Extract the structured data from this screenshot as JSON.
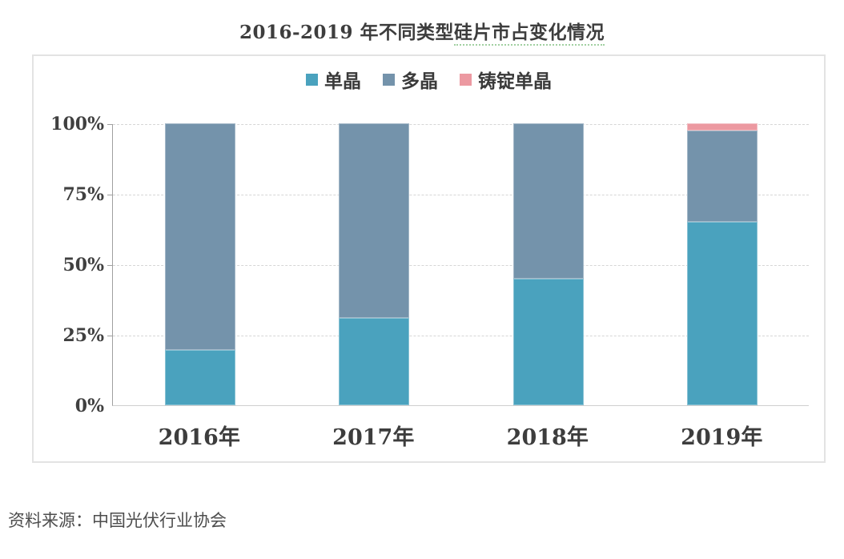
{
  "title": {
    "part1": "2016-2019 年不同类型",
    "part2": "硅片市占变化情况"
  },
  "source_note": "资料来源：中国光伏行业协会",
  "colors": {
    "mono": "#4aa2be",
    "poly": "#7493ab",
    "cast_mono": "#ec99a1",
    "axis_text": "#404040",
    "gridline": "#d6d6d6"
  },
  "chart_data": {
    "type": "bar",
    "stacked": true,
    "title": "2016-2019 年不同类型硅片市占变化情况",
    "categories": [
      "2016年",
      "2017年",
      "2018年",
      "2019年"
    ],
    "series": [
      {
        "name": "单晶",
        "color_key": "mono",
        "values": [
          19.5,
          31,
          45,
          65
        ]
      },
      {
        "name": "多晶",
        "color_key": "poly",
        "values": [
          80.5,
          69,
          55,
          32.5
        ]
      },
      {
        "name": "铸锭单晶",
        "color_key": "cast_mono",
        "values": [
          0,
          0,
          0,
          2.5
        ]
      }
    ],
    "xlabel": "",
    "ylabel": "",
    "ylim": [
      0,
      100
    ],
    "ytick_values": [
      0,
      25,
      50,
      75,
      100
    ],
    "ytick_labels": [
      "0%",
      "25%",
      "50%",
      "75%",
      "100%"
    ],
    "grid": "horizontal-dashed",
    "legend_position": "top-center"
  }
}
